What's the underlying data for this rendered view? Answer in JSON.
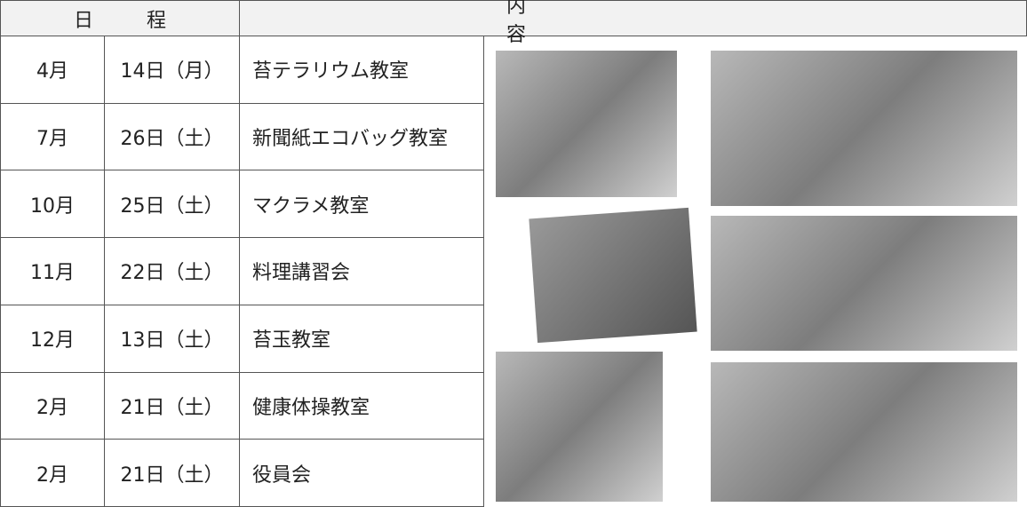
{
  "header": {
    "schedule": "日程",
    "content": "内容"
  },
  "table": {
    "rows": [
      [
        "4月",
        "14日（月）",
        "苔テラリウム教室"
      ],
      [
        "7月",
        "26日（土）",
        "新聞紙エコバッグ教室"
      ],
      [
        "10月",
        "25日（土）",
        "マクラメ教室"
      ],
      [
        "11月",
        "22日（土）",
        "料理講習会"
      ],
      [
        "12月",
        "13日（土）",
        "苔玉教室"
      ],
      [
        "2月",
        "21日（土）",
        "健康体操教室"
      ],
      [
        "2月",
        "21日（土）",
        "役員会"
      ]
    ]
  }
}
